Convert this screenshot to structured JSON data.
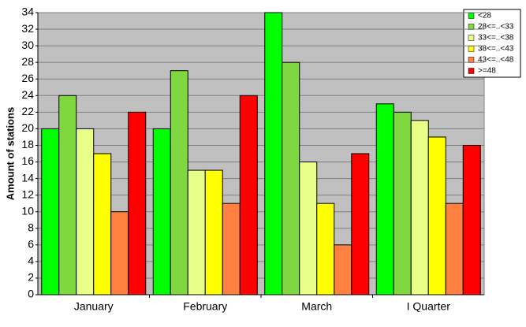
{
  "chart_data": {
    "type": "bar",
    "y_label": "Amount of stations",
    "categories": [
      "January",
      "February",
      "March",
      "I Quarter"
    ],
    "series": [
      {
        "name": "<28",
        "color": "#00ff00",
        "values": [
          20,
          20,
          34,
          23
        ]
      },
      {
        "name": "28<=..<33",
        "color": "#80d840",
        "values": [
          24,
          27,
          28,
          22
        ]
      },
      {
        "name": "33<=..<38",
        "color": "#e8ff88",
        "values": [
          20,
          15,
          16,
          21
        ]
      },
      {
        "name": "38<=..<43",
        "color": "#ffff00",
        "values": [
          17,
          15,
          11,
          19
        ]
      },
      {
        "name": "43<=..<48",
        "color": "#ff8040",
        "values": [
          10,
          11,
          6,
          11
        ]
      },
      {
        "name": ">=48",
        "color": "#ff0000",
        "values": [
          22,
          24,
          17,
          18
        ]
      }
    ],
    "ylim": [
      0,
      34
    ],
    "yticks": [
      0,
      2,
      4,
      6,
      8,
      10,
      12,
      14,
      16,
      18,
      20,
      22,
      24,
      26,
      28,
      30,
      32,
      34
    ],
    "grid": true,
    "legend": "upper right"
  }
}
